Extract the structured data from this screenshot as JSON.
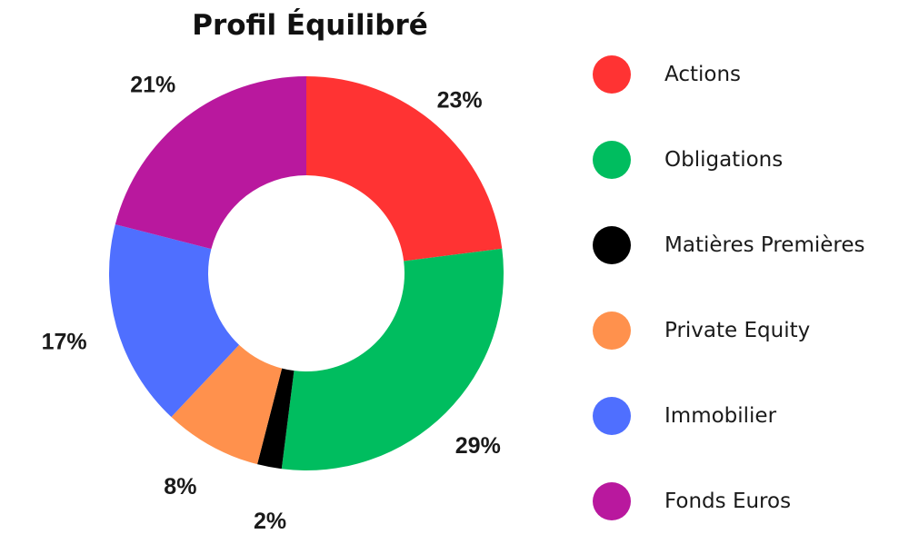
{
  "chart_data": {
    "type": "pie",
    "variant": "donut",
    "title": "Profil Équilibré",
    "series": [
      {
        "name": "Actions",
        "value": 23,
        "label": "23%",
        "color": "#ff3333"
      },
      {
        "name": "Obligations",
        "value": 29,
        "label": "29%",
        "color": "#00bd5f"
      },
      {
        "name": "Matières Premières",
        "value": 2,
        "label": "2%",
        "color": "#000000"
      },
      {
        "name": "Private Equity",
        "value": 8,
        "label": "8%",
        "color": "#ff914d"
      },
      {
        "name": "Immobilier",
        "value": 17,
        "label": "17%",
        "color": "#4f6fff"
      },
      {
        "name": "Fonds Euros",
        "value": 21,
        "label": "21%",
        "color": "#b9189e"
      }
    ],
    "legend_position": "right"
  }
}
